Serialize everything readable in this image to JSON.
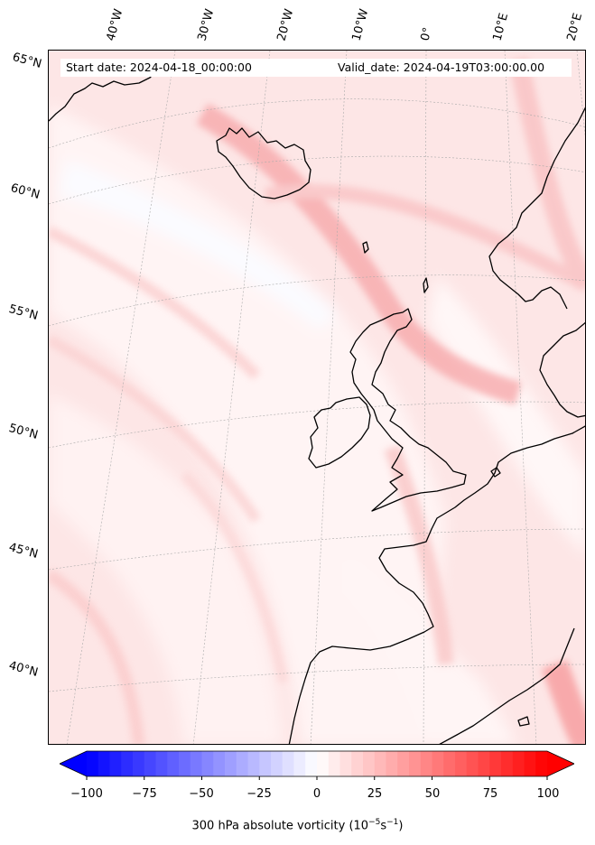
{
  "info": {
    "start_text": "Start date: 2024-04-18_00:00:00",
    "valid_text": "Valid_date: 2024-04-19T03:00:00.00"
  },
  "longitude_labels": [
    "40°W",
    "30°W",
    "20°W",
    "10°W",
    "0°",
    "10°E",
    "20°E"
  ],
  "latitude_labels": [
    "65°N",
    "60°N",
    "55°N",
    "50°N",
    "45°N",
    "40°N"
  ],
  "colorbar": {
    "ticks": [
      "−100",
      "−75",
      "−50",
      "−25",
      "0",
      "25",
      "50",
      "75",
      "100"
    ],
    "min": -100,
    "max": 100,
    "label": "300 hPa absolute vorticity (10",
    "label_exp1": "−5",
    "label_mid": "s",
    "label_exp2": "−1",
    "label_end": ")",
    "colors": {
      "low": "#0000ff",
      "mid": "#ffffff",
      "high": "#ff0000"
    }
  },
  "coastline_color": "#000000"
}
